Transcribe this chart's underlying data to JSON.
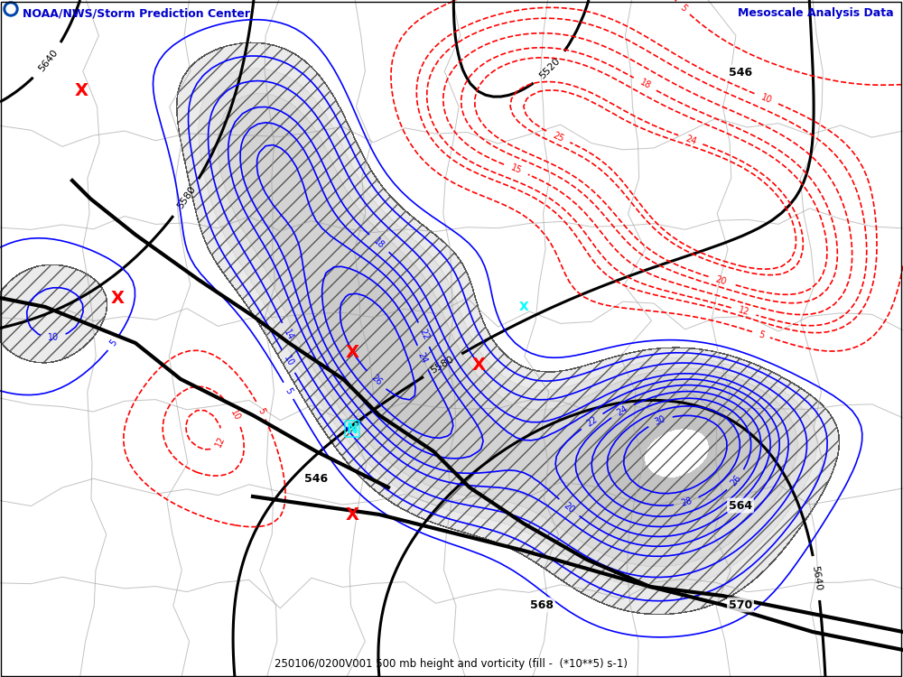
{
  "title": "250106/0200V001 500 mb height and vorticity (fill -  (*10**5) s-1)",
  "top_left_text": "NOAA/NWS/Storm Prediction Center",
  "top_right_text": "Mesoscale Analysis Data",
  "top_left_color": "#0000cc",
  "top_right_color": "#0000cc",
  "background_color": "#ffffff",
  "fig_width": 10.0,
  "fig_height": 7.5,
  "dpi": 100
}
